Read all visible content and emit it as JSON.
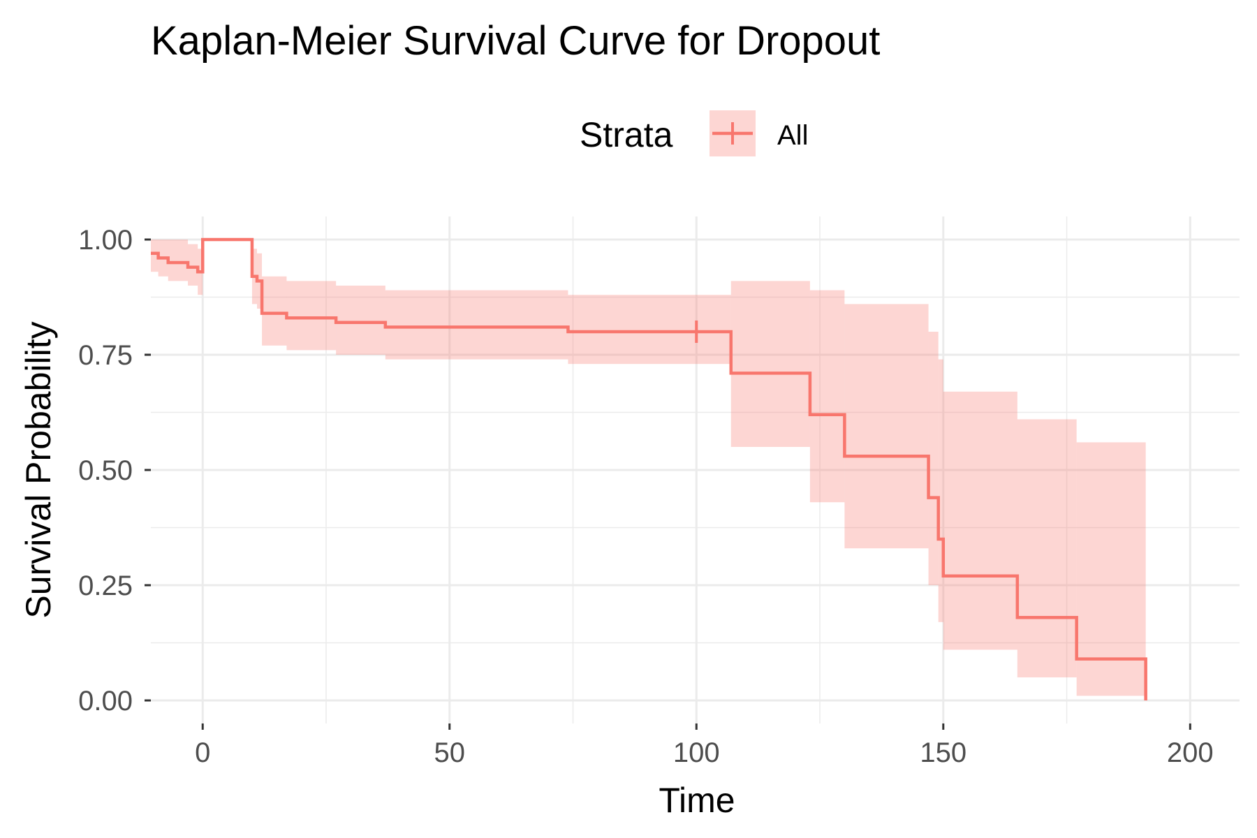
{
  "chart_data": {
    "type": "line",
    "title": "Kaplan-Meier Survival Curve for Dropout",
    "xlabel": "Time",
    "ylabel": "Survival Probability",
    "xlim": [
      -10.5,
      210
    ],
    "ylim": [
      -0.05,
      1.05
    ],
    "x_ticks": [
      0,
      50,
      100,
      150,
      200
    ],
    "x_tick_labels": [
      "0",
      "50",
      "100",
      "150",
      "200"
    ],
    "y_ticks": [
      0,
      0.25,
      0.5,
      0.75,
      1.0
    ],
    "y_tick_labels": [
      "0.00",
      "0.25",
      "0.50",
      "0.75",
      "1.00"
    ],
    "grid": true,
    "legend": {
      "title": "Strata",
      "position": "top",
      "entries": [
        "All"
      ]
    },
    "colors": {
      "line": "#F8766D",
      "band": "#F8766D",
      "grid": "#ebebeb",
      "tick": "#333333"
    },
    "series": [
      {
        "name": "All",
        "steps": [
          {
            "x": -10.5,
            "y": 0.97,
            "lo": 0.93,
            "hi": 1.0
          },
          {
            "x": -9.0,
            "y": 0.96,
            "lo": 0.92,
            "hi": 1.0
          },
          {
            "x": -7.0,
            "y": 0.95,
            "lo": 0.91,
            "hi": 1.0
          },
          {
            "x": -3.0,
            "y": 0.94,
            "lo": 0.9,
            "hi": 0.99
          },
          {
            "x": -1.0,
            "y": 0.93,
            "lo": 0.88,
            "hi": 0.98
          },
          {
            "x": 0.0,
            "y": 1.0,
            "lo": 1.0,
            "hi": 1.0
          },
          {
            "x": 10.0,
            "y": 0.92,
            "lo": 0.86,
            "hi": 0.98
          },
          {
            "x": 11.0,
            "y": 0.91,
            "lo": 0.85,
            "hi": 0.97
          },
          {
            "x": 12.0,
            "y": 0.84,
            "lo": 0.77,
            "hi": 0.92
          },
          {
            "x": 17.0,
            "y": 0.83,
            "lo": 0.76,
            "hi": 0.91
          },
          {
            "x": 27.0,
            "y": 0.82,
            "lo": 0.75,
            "hi": 0.9
          },
          {
            "x": 37.0,
            "y": 0.81,
            "lo": 0.74,
            "hi": 0.89
          },
          {
            "x": 74.0,
            "y": 0.8,
            "lo": 0.73,
            "hi": 0.88
          },
          {
            "x": 107.0,
            "y": 0.71,
            "lo": 0.55,
            "hi": 0.91
          },
          {
            "x": 123.0,
            "y": 0.62,
            "lo": 0.43,
            "hi": 0.89
          },
          {
            "x": 130.0,
            "y": 0.53,
            "lo": 0.33,
            "hi": 0.86
          },
          {
            "x": 147.0,
            "y": 0.44,
            "lo": 0.25,
            "hi": 0.8
          },
          {
            "x": 149.0,
            "y": 0.35,
            "lo": 0.17,
            "hi": 0.74
          },
          {
            "x": 150.0,
            "y": 0.27,
            "lo": 0.11,
            "hi": 0.67
          },
          {
            "x": 165.0,
            "y": 0.18,
            "lo": 0.05,
            "hi": 0.61
          },
          {
            "x": 177.0,
            "y": 0.09,
            "lo": 0.01,
            "hi": 0.56
          },
          {
            "x": 191.0,
            "y": 0.0
          }
        ],
        "censored": [
          {
            "x": 100.0,
            "y": 0.8
          }
        ]
      }
    ]
  }
}
